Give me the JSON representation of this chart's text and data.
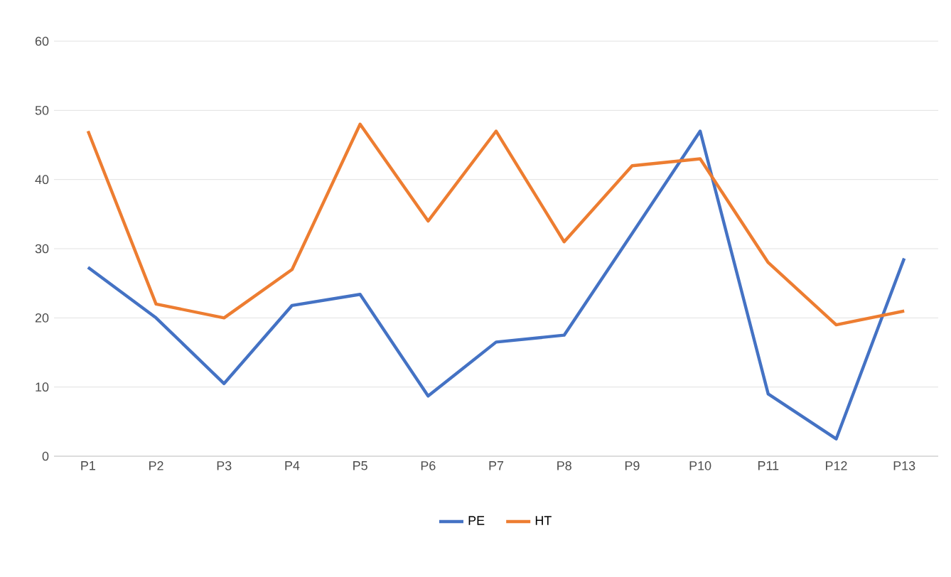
{
  "chart_data": {
    "type": "line",
    "categories": [
      "P1",
      "P2",
      "P3",
      "P4",
      "P5",
      "P6",
      "P7",
      "P8",
      "P9",
      "P10",
      "P11",
      "P12",
      "P13"
    ],
    "series": [
      {
        "name": "PE",
        "color": "#4472c4",
        "values": [
          27.3,
          20,
          10.5,
          21.8,
          23.4,
          8.7,
          16.5,
          17.5,
          32.2,
          47,
          9,
          2.5,
          28.6
        ]
      },
      {
        "name": "HT",
        "color": "#ed7d31",
        "values": [
          47,
          22,
          20,
          27,
          48,
          34,
          47,
          31,
          42,
          43,
          28,
          19,
          21
        ]
      }
    ],
    "ylim": [
      0,
      60
    ],
    "yticks": [
      0,
      10,
      20,
      30,
      40,
      50,
      60
    ],
    "grid": "y",
    "legend": "bottom",
    "marker": "none",
    "line_style": "solid"
  }
}
